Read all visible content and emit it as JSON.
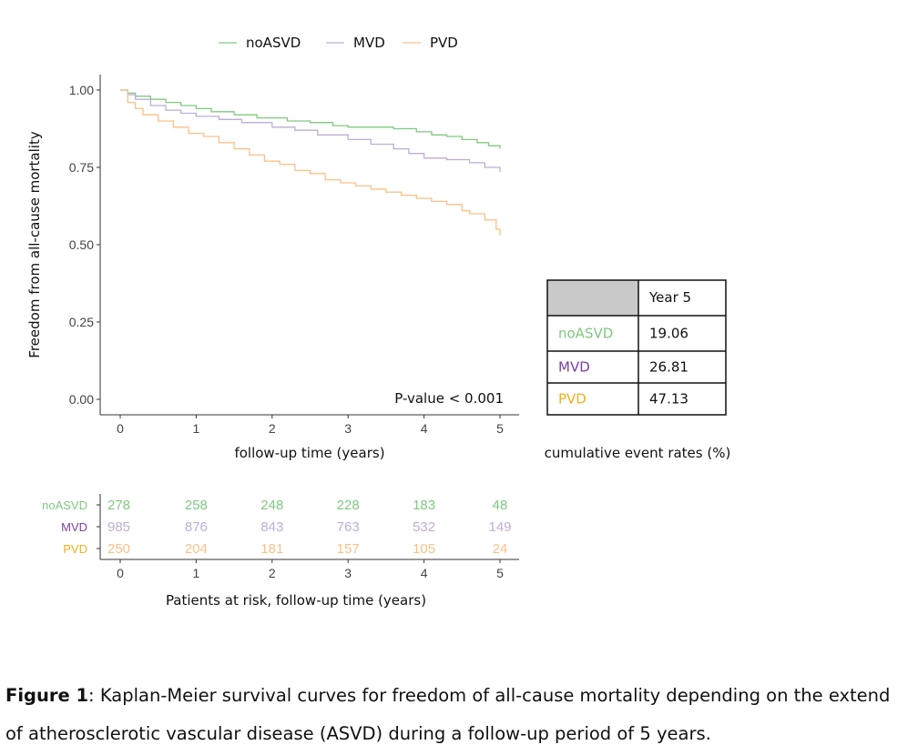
{
  "colors": {
    "noASVD": "#7fc97f",
    "MVD": "#beaed4",
    "PVD": "#fdc086",
    "MVD_label": "#7b3fa0",
    "PVD_label": "#f0b020",
    "noASVD_label": "#7fc97f"
  },
  "chart_data": {
    "type": "line",
    "xlabel": "follow-up time (years)",
    "ylabel": "Freedom from all-cause mortality",
    "xlim": [
      0,
      5
    ],
    "ylim": [
      0,
      1
    ],
    "xticks": [
      "0",
      "1",
      "2",
      "3",
      "4",
      "5"
    ],
    "yticks": [
      "0.00",
      "0.25",
      "0.50",
      "0.75",
      "1.00"
    ],
    "legend_position": "top",
    "annotation": "P-value < 0.001",
    "series": [
      {
        "name": "noASVD",
        "x": [
          0,
          0.1,
          0.2,
          0.4,
          0.6,
          0.8,
          1.0,
          1.2,
          1.5,
          1.8,
          2.0,
          2.2,
          2.5,
          2.8,
          3.0,
          3.3,
          3.6,
          3.9,
          4.1,
          4.3,
          4.5,
          4.7,
          4.85,
          5.0
        ],
        "y": [
          1.0,
          0.99,
          0.98,
          0.97,
          0.96,
          0.95,
          0.94,
          0.93,
          0.92,
          0.91,
          0.91,
          0.9,
          0.895,
          0.885,
          0.88,
          0.88,
          0.875,
          0.865,
          0.855,
          0.85,
          0.84,
          0.83,
          0.82,
          0.81
        ]
      },
      {
        "name": "MVD",
        "x": [
          0,
          0.1,
          0.2,
          0.4,
          0.6,
          0.8,
          1.0,
          1.3,
          1.6,
          2.0,
          2.3,
          2.6,
          3.0,
          3.3,
          3.6,
          3.8,
          4.0,
          4.3,
          4.6,
          4.8,
          5.0
        ],
        "y": [
          1.0,
          0.985,
          0.97,
          0.95,
          0.935,
          0.925,
          0.915,
          0.905,
          0.895,
          0.88,
          0.87,
          0.855,
          0.84,
          0.825,
          0.81,
          0.795,
          0.78,
          0.775,
          0.765,
          0.75,
          0.735
        ]
      },
      {
        "name": "PVD",
        "x": [
          0,
          0.1,
          0.2,
          0.3,
          0.5,
          0.7,
          0.9,
          1.1,
          1.3,
          1.5,
          1.7,
          1.9,
          2.1,
          2.3,
          2.5,
          2.7,
          2.9,
          3.1,
          3.3,
          3.5,
          3.7,
          3.9,
          4.1,
          4.3,
          4.5,
          4.6,
          4.8,
          4.95,
          5.0
        ],
        "y": [
          1.0,
          0.96,
          0.94,
          0.92,
          0.9,
          0.88,
          0.86,
          0.85,
          0.83,
          0.81,
          0.79,
          0.77,
          0.76,
          0.74,
          0.73,
          0.71,
          0.7,
          0.69,
          0.68,
          0.67,
          0.66,
          0.65,
          0.64,
          0.63,
          0.61,
          0.6,
          0.58,
          0.55,
          0.53
        ]
      }
    ]
  },
  "legend": [
    {
      "key": "noASVD",
      "label": "noASVD"
    },
    {
      "key": "MVD",
      "label": "MVD"
    },
    {
      "key": "PVD",
      "label": "PVD"
    }
  ],
  "event_table": {
    "header": "Year 5",
    "rows": [
      {
        "key": "noASVD",
        "label": "noASVD",
        "value": "19.06"
      },
      {
        "key": "MVD",
        "label": "MVD",
        "value": "26.81"
      },
      {
        "key": "PVD",
        "label": "PVD",
        "value": "47.13"
      }
    ],
    "caption": "cumulative event rates (%)"
  },
  "risk_table": {
    "xlabel": "Patients at risk, follow-up time (years)",
    "xticks": [
      "0",
      "1",
      "2",
      "3",
      "4",
      "5"
    ],
    "rows": [
      {
        "key": "noASVD",
        "label": "noASVD",
        "values": [
          "278",
          "258",
          "248",
          "228",
          "183",
          "48"
        ]
      },
      {
        "key": "MVD",
        "label": "MVD",
        "values": [
          "985",
          "876",
          "843",
          "763",
          "532",
          "149"
        ]
      },
      {
        "key": "PVD",
        "label": "PVD",
        "values": [
          "250",
          "204",
          "181",
          "157",
          "105",
          "24"
        ]
      }
    ]
  },
  "caption": {
    "bold": "Figure 1",
    "text": ": Kaplan-Meier survival curves for freedom of all-cause mortality depending on the extend of atherosclerotic vascular disease (ASVD) during a follow-up period of 5 years."
  }
}
